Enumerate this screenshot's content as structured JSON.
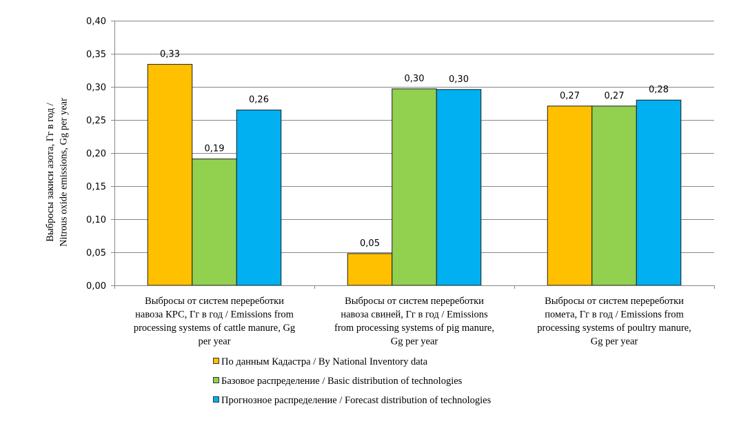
{
  "chart_data": {
    "type": "bar",
    "title": "",
    "xlabel": "",
    "ylabel_lines": [
      "Выбросы закиси азота, Гг в год /",
      "Nitrous oxide emissions, Gg per year"
    ],
    "ylim": [
      0,
      0.4
    ],
    "yticks": [
      0,
      0.05,
      0.1,
      0.15,
      0.2,
      0.25,
      0.3,
      0.35,
      0.4
    ],
    "ytick_labels": [
      "0,00",
      "0,05",
      "0,10",
      "0,15",
      "0,20",
      "0,25",
      "0,30",
      "0,35",
      "0,40"
    ],
    "grid": true,
    "legend_position": "bottom",
    "categories": [
      [
        "Выбросы  от систем перереботки",
        "навоза КРС, Гг в год / Emissions from",
        "processing systems of cattle manure, Gg",
        "per year"
      ],
      [
        "Выбросы  от систем перереботки",
        "навоза свиней, Гг в год / Emissions",
        "from processing systems of pig manure,",
        "Gg per year"
      ],
      [
        "Выбросы  от систем перереботки",
        "помета, Гг в год / Emissions from",
        "processing systems of poultry manure,",
        "Gg per year"
      ]
    ],
    "series": [
      {
        "name": "По данным Кадастра / By National Inventory data",
        "color": "#FFC000",
        "values": [
          0.334,
          0.048,
          0.271
        ],
        "labels": [
          "0,33",
          "0,05",
          "0,27"
        ]
      },
      {
        "name": "Базовое распределение / Basic distribution of technologies",
        "color": "#92D050",
        "values": [
          0.191,
          0.297,
          0.271
        ],
        "labels": [
          "0,19",
          "0,30",
          "0,27"
        ]
      },
      {
        "name": "Прогнозное распределение / Forecast distribution of technologies",
        "color": "#00B0F0",
        "values": [
          0.265,
          0.296,
          0.28
        ],
        "labels": [
          "0,26",
          "0,30",
          "0,28"
        ]
      }
    ]
  }
}
